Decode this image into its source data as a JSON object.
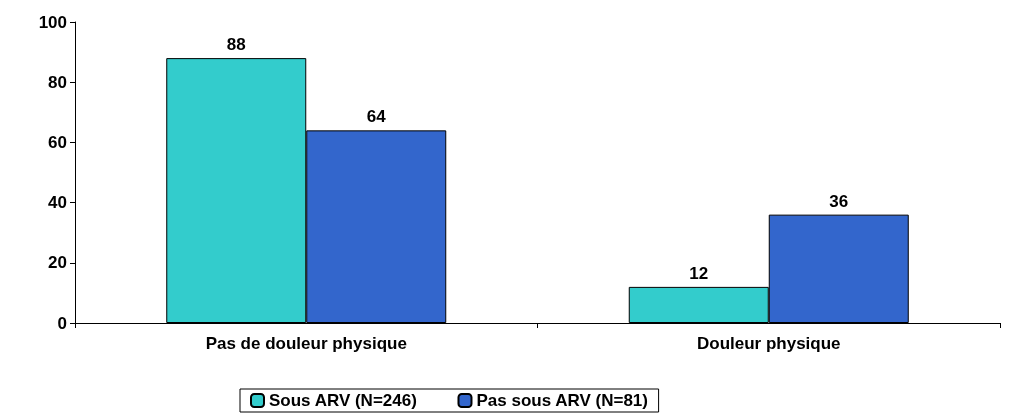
{
  "chart_data": {
    "type": "bar",
    "categories": [
      "Pas de douleur physique",
      "Douleur physique"
    ],
    "series": [
      {
        "name": "Sous ARV (N=246)",
        "color": "#33cccc",
        "values": [
          88,
          12
        ]
      },
      {
        "name": "Pas sous ARV (N=81)",
        "color": "#3366cc",
        "values": [
          64,
          36
        ]
      }
    ],
    "ylim": [
      0,
      100
    ],
    "yticks": [
      0,
      20,
      40,
      60,
      80,
      100
    ],
    "grid": false,
    "legend": "bottom",
    "data_labels": true
  }
}
